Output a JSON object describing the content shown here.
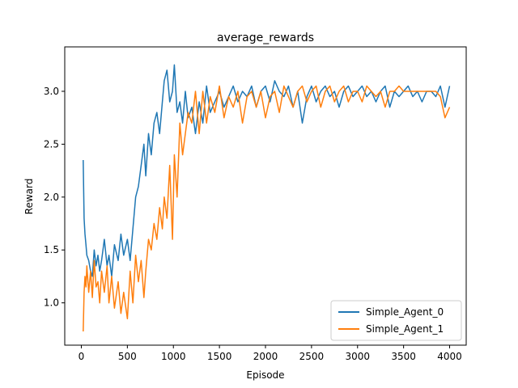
{
  "chart_data": {
    "type": "line",
    "title": "average_rewards",
    "xlabel": "Episode",
    "ylabel": "Reward",
    "xlim": [
      -180,
      4180
    ],
    "ylim": [
      0.6,
      3.42
    ],
    "xticks": [
      0,
      500,
      1000,
      1500,
      2000,
      2500,
      3000,
      3500,
      4000
    ],
    "yticks": [
      1.0,
      1.5,
      2.0,
      2.5,
      3.0
    ],
    "ytick_labels": [
      "1.0",
      "1.5",
      "2.0",
      "2.5",
      "3.0"
    ],
    "grid": false,
    "legend_position": "lower-right",
    "series": [
      {
        "name": "Simple_Agent_0",
        "color": "#1f77b4",
        "x": [
          20,
          30,
          40,
          50,
          60,
          80,
          100,
          120,
          140,
          160,
          180,
          200,
          220,
          250,
          280,
          300,
          330,
          360,
          400,
          430,
          460,
          500,
          530,
          560,
          590,
          620,
          650,
          680,
          700,
          730,
          760,
          790,
          820,
          850,
          880,
          900,
          930,
          960,
          990,
          1010,
          1040,
          1070,
          1100,
          1130,
          1160,
          1200,
          1240,
          1280,
          1320,
          1360,
          1400,
          1450,
          1500,
          1550,
          1600,
          1650,
          1700,
          1750,
          1800,
          1850,
          1900,
          1950,
          2000,
          2050,
          2100,
          2150,
          2200,
          2250,
          2300,
          2350,
          2400,
          2450,
          2500,
          2550,
          2600,
          2650,
          2700,
          2750,
          2800,
          2850,
          2900,
          2950,
          3000,
          3050,
          3100,
          3150,
          3200,
          3250,
          3300,
          3350,
          3400,
          3450,
          3500,
          3550,
          3600,
          3650,
          3700,
          3750,
          3800,
          3850,
          3900,
          3950,
          4000
        ],
        "y": [
          2.35,
          1.8,
          1.65,
          1.55,
          1.45,
          1.4,
          1.3,
          1.25,
          1.5,
          1.35,
          1.45,
          1.3,
          1.4,
          1.6,
          1.35,
          1.45,
          1.25,
          1.55,
          1.4,
          1.65,
          1.45,
          1.6,
          1.4,
          1.7,
          2.0,
          2.1,
          2.3,
          2.5,
          2.2,
          2.6,
          2.4,
          2.7,
          2.8,
          2.6,
          2.9,
          3.1,
          3.2,
          2.9,
          3.0,
          3.25,
          2.8,
          2.9,
          2.7,
          3.0,
          2.75,
          2.85,
          2.6,
          2.9,
          2.7,
          3.05,
          2.8,
          2.9,
          3.0,
          2.85,
          2.95,
          3.05,
          2.9,
          3.0,
          2.95,
          3.05,
          2.85,
          3.0,
          3.05,
          2.9,
          3.1,
          3.0,
          2.95,
          3.05,
          2.85,
          3.0,
          2.7,
          2.95,
          3.05,
          2.9,
          3.0,
          3.05,
          2.95,
          3.0,
          2.85,
          3.0,
          3.05,
          2.95,
          3.0,
          3.05,
          2.95,
          3.0,
          2.9,
          3.0,
          3.05,
          2.85,
          3.0,
          2.95,
          3.0,
          3.05,
          2.95,
          3.0,
          2.9,
          3.0,
          3.0,
          2.95,
          3.05,
          2.85,
          3.05
        ]
      },
      {
        "name": "Simple_Agent_1",
        "color": "#ff7f0e",
        "x": [
          20,
          30,
          40,
          50,
          60,
          80,
          100,
          120,
          140,
          160,
          180,
          200,
          220,
          250,
          280,
          300,
          330,
          360,
          400,
          430,
          460,
          500,
          530,
          560,
          590,
          620,
          650,
          680,
          700,
          730,
          760,
          790,
          820,
          850,
          880,
          900,
          930,
          960,
          990,
          1010,
          1040,
          1070,
          1100,
          1130,
          1160,
          1200,
          1240,
          1280,
          1320,
          1360,
          1400,
          1450,
          1500,
          1550,
          1600,
          1650,
          1700,
          1750,
          1800,
          1850,
          1900,
          1950,
          2000,
          2050,
          2100,
          2150,
          2200,
          2250,
          2300,
          2350,
          2400,
          2450,
          2500,
          2550,
          2600,
          2650,
          2700,
          2750,
          2800,
          2850,
          2900,
          2950,
          3000,
          3050,
          3100,
          3150,
          3200,
          3250,
          3300,
          3350,
          3400,
          3450,
          3500,
          3550,
          3600,
          3650,
          3700,
          3750,
          3800,
          3850,
          3900,
          3950,
          4000
        ],
        "y": [
          0.73,
          1.1,
          1.25,
          1.15,
          1.35,
          1.1,
          1.3,
          1.05,
          1.4,
          1.15,
          1.2,
          1.0,
          1.3,
          1.1,
          1.35,
          1.0,
          1.25,
          0.95,
          1.2,
          0.9,
          1.1,
          0.85,
          1.3,
          1.0,
          1.45,
          1.2,
          1.4,
          1.05,
          1.3,
          1.6,
          1.5,
          1.75,
          1.6,
          1.9,
          1.7,
          2.0,
          1.8,
          2.3,
          1.6,
          2.4,
          2.0,
          2.7,
          2.4,
          2.6,
          2.8,
          2.7,
          3.0,
          2.6,
          3.0,
          2.7,
          2.95,
          2.8,
          3.05,
          2.75,
          2.95,
          2.85,
          3.0,
          2.7,
          2.95,
          3.0,
          2.85,
          3.0,
          2.75,
          2.95,
          3.0,
          2.8,
          3.05,
          2.95,
          2.85,
          3.0,
          3.05,
          2.9,
          3.0,
          3.05,
          2.85,
          3.0,
          3.05,
          2.9,
          3.0,
          3.05,
          2.9,
          3.0,
          3.0,
          2.9,
          3.05,
          3.0,
          2.95,
          3.0,
          2.85,
          3.0,
          3.0,
          3.05,
          3.0,
          3.0,
          3.0,
          3.0,
          3.0,
          3.0,
          3.0,
          3.0,
          2.95,
          2.75,
          2.85
        ]
      }
    ]
  }
}
